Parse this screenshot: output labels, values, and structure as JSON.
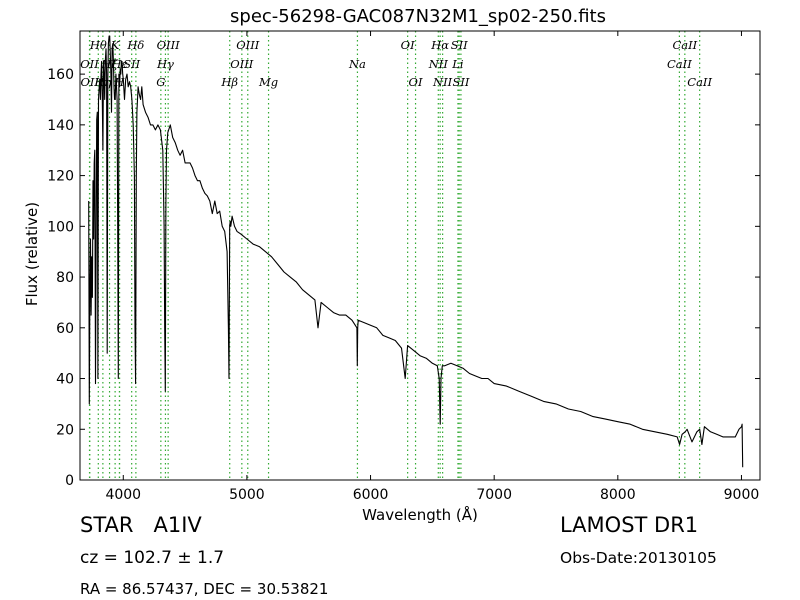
{
  "chart_data": {
    "type": "line",
    "title": "spec-56298-GAC087N32M1_sp02-250.fits",
    "xlabel": "Wavelength (Å)",
    "ylabel": "Flux (relative)",
    "xlim": [
      3650,
      9150
    ],
    "ylim": [
      0,
      177
    ],
    "xticks": [
      4000,
      5000,
      6000,
      7000,
      8000,
      9000
    ],
    "yticks": [
      0,
      20,
      40,
      60,
      80,
      100,
      120,
      140,
      160
    ],
    "grid": false,
    "line_color": "#000000",
    "line_marker_color": "#33aa33",
    "series": [
      {
        "x": [
          3720,
          3725,
          3730,
          3735,
          3740,
          3745,
          3750,
          3755,
          3760,
          3765,
          3770,
          3775,
          3780,
          3785,
          3790,
          3795,
          3800,
          3805,
          3810,
          3815,
          3820,
          3825,
          3830,
          3835,
          3840,
          3845,
          3850,
          3855,
          3860,
          3865,
          3870,
          3875,
          3880,
          3885,
          3890,
          3895,
          3900,
          3905,
          3910,
          3915,
          3920,
          3925,
          3930,
          3935,
          3940,
          3945,
          3950,
          3955,
          3960,
          3965,
          3970,
          3975,
          3980,
          3985,
          3990,
          3995,
          4000,
          4010,
          4020,
          4030,
          4040,
          4050,
          4060,
          4070,
          4080,
          4090,
          4095,
          4100,
          4105,
          4110,
          4120,
          4130,
          4140,
          4150,
          4160,
          4180,
          4200,
          4220,
          4240,
          4260,
          4280,
          4300,
          4320,
          4330,
          4335,
          4340,
          4345,
          4350,
          4360,
          4380,
          4400,
          4420,
          4440,
          4460,
          4480,
          4500,
          4520,
          4540,
          4560,
          4580,
          4600,
          4620,
          4640,
          4660,
          4680,
          4700,
          4720,
          4740,
          4760,
          4780,
          4800,
          4820,
          4840,
          4850,
          4855,
          4861,
          4865,
          4870,
          4880,
          4900,
          4920,
          4950,
          5000,
          5050,
          5100,
          5150,
          5200,
          5250,
          5300,
          5350,
          5400,
          5450,
          5500,
          5550,
          5575,
          5600,
          5650,
          5700,
          5750,
          5800,
          5850,
          5890,
          5893,
          5896,
          5900,
          5950,
          6000,
          6050,
          6100,
          6150,
          6200,
          6250,
          6280,
          6300,
          6350,
          6400,
          6450,
          6500,
          6540,
          6555,
          6563,
          6570,
          6580,
          6600,
          6650,
          6700,
          6750,
          6800,
          6850,
          6900,
          6950,
          7000,
          7100,
          7200,
          7300,
          7400,
          7500,
          7600,
          7700,
          7800,
          7900,
          8000,
          8100,
          8200,
          8300,
          8400,
          8480,
          8500,
          8520,
          8545,
          8560,
          8600,
          8640,
          8662,
          8680,
          8700,
          8750,
          8800,
          8850,
          8900,
          8950,
          8980,
          9000,
          9005,
          9010
        ],
        "y": [
          110,
          30,
          75,
          95,
          65,
          88,
          72,
          118,
          95,
          125,
          130,
          38,
          90,
          142,
          145,
          40,
          150,
          155,
          158,
          150,
          160,
          165,
          150,
          130,
          165,
          160,
          150,
          165,
          170,
          160,
          50,
          158,
          172,
          175,
          175,
          168,
          160,
          145,
          170,
          172,
          165,
          155,
          150,
          150,
          160,
          155,
          150,
          100,
          40,
          160,
          155,
          162,
          160,
          165,
          165,
          160,
          158,
          150,
          158,
          160,
          155,
          157,
          155,
          150,
          140,
          120,
          60,
          38,
          120,
          145,
          155,
          152,
          150,
          155,
          148,
          145,
          143,
          140,
          140,
          138,
          140,
          138,
          130,
          100,
          60,
          35,
          110,
          130,
          137,
          140,
          135,
          133,
          130,
          128,
          130,
          125,
          125,
          125,
          123,
          120,
          118,
          118,
          115,
          113,
          112,
          110,
          105,
          110,
          105,
          106,
          100,
          98,
          90,
          60,
          40,
          100,
          102,
          100,
          104,
          100,
          98,
          97,
          95,
          93,
          92,
          90,
          88,
          85,
          82,
          80,
          78,
          75,
          73,
          71,
          60,
          70,
          68,
          66,
          65,
          65,
          63,
          60,
          45,
          60,
          63,
          62,
          61,
          60,
          57,
          56,
          55,
          52,
          40,
          53,
          51,
          49,
          48,
          46,
          45,
          40,
          22,
          40,
          45,
          45,
          46,
          45,
          44,
          42,
          41,
          40,
          40,
          38,
          37,
          35,
          33,
          31,
          30,
          28,
          27,
          25,
          24,
          23,
          22,
          20,
          19,
          18,
          17,
          14,
          18,
          19,
          20,
          15,
          19,
          20,
          14,
          21,
          19,
          18,
          17,
          17,
          17,
          20,
          21,
          22,
          5
        ]
      }
    ],
    "line_markers": [
      {
        "x": 3727,
        "label": "OII",
        "row": 2
      },
      {
        "x": 3729,
        "label": "OII",
        "row": 3
      },
      {
        "x": 3798,
        "label": "Hθ",
        "row": 1
      },
      {
        "x": 3835,
        "label": "Hη",
        "row": 3
      },
      {
        "x": 3889,
        "label": "Hζ",
        "row": 2
      },
      {
        "x": 3934,
        "label": "K",
        "row": 1
      },
      {
        "x": 3969,
        "label": "H",
        "row": 3
      },
      {
        "x": 3970,
        "label": "Hε",
        "row": 2
      },
      {
        "x": 4102,
        "label": "Hδ",
        "row": 1
      },
      {
        "x": 4068,
        "label": "SII",
        "row": 2
      },
      {
        "x": 4341,
        "label": "Hγ",
        "row": 2
      },
      {
        "x": 4304,
        "label": "G",
        "row": 3
      },
      {
        "x": 4363,
        "label": "OIII",
        "row": 1
      },
      {
        "x": 4861,
        "label": "Hβ",
        "row": 3
      },
      {
        "x": 4959,
        "label": "OIII",
        "row": 2
      },
      {
        "x": 5007,
        "label": "OIII",
        "row": 1
      },
      {
        "x": 5175,
        "label": "Mg",
        "row": 3
      },
      {
        "x": 5894,
        "label": "Na",
        "row": 2
      },
      {
        "x": 6300,
        "label": "OI",
        "row": 1
      },
      {
        "x": 6364,
        "label": "OI",
        "row": 3
      },
      {
        "x": 6548,
        "label": "NII",
        "row": 2
      },
      {
        "x": 6563,
        "label": "Hα",
        "row": 1
      },
      {
        "x": 6583,
        "label": "NII",
        "row": 3
      },
      {
        "x": 6707,
        "label": "Li",
        "row": 2
      },
      {
        "x": 6717,
        "label": "SII",
        "row": 1
      },
      {
        "x": 6731,
        "label": "SII",
        "row": 3
      },
      {
        "x": 8498,
        "label": "CaII",
        "row": 2
      },
      {
        "x": 8542,
        "label": "CaII",
        "row": 1
      },
      {
        "x": 8662,
        "label": "CaII",
        "row": 3
      }
    ]
  },
  "info": {
    "star_class": "STAR   A1IV",
    "cz": "cz = 102.7 ± 1.7",
    "radec": "RA = 86.57437, DEC = 30.53821",
    "survey": "LAMOST DR1",
    "obs_date": "Obs-Date:20130105"
  }
}
